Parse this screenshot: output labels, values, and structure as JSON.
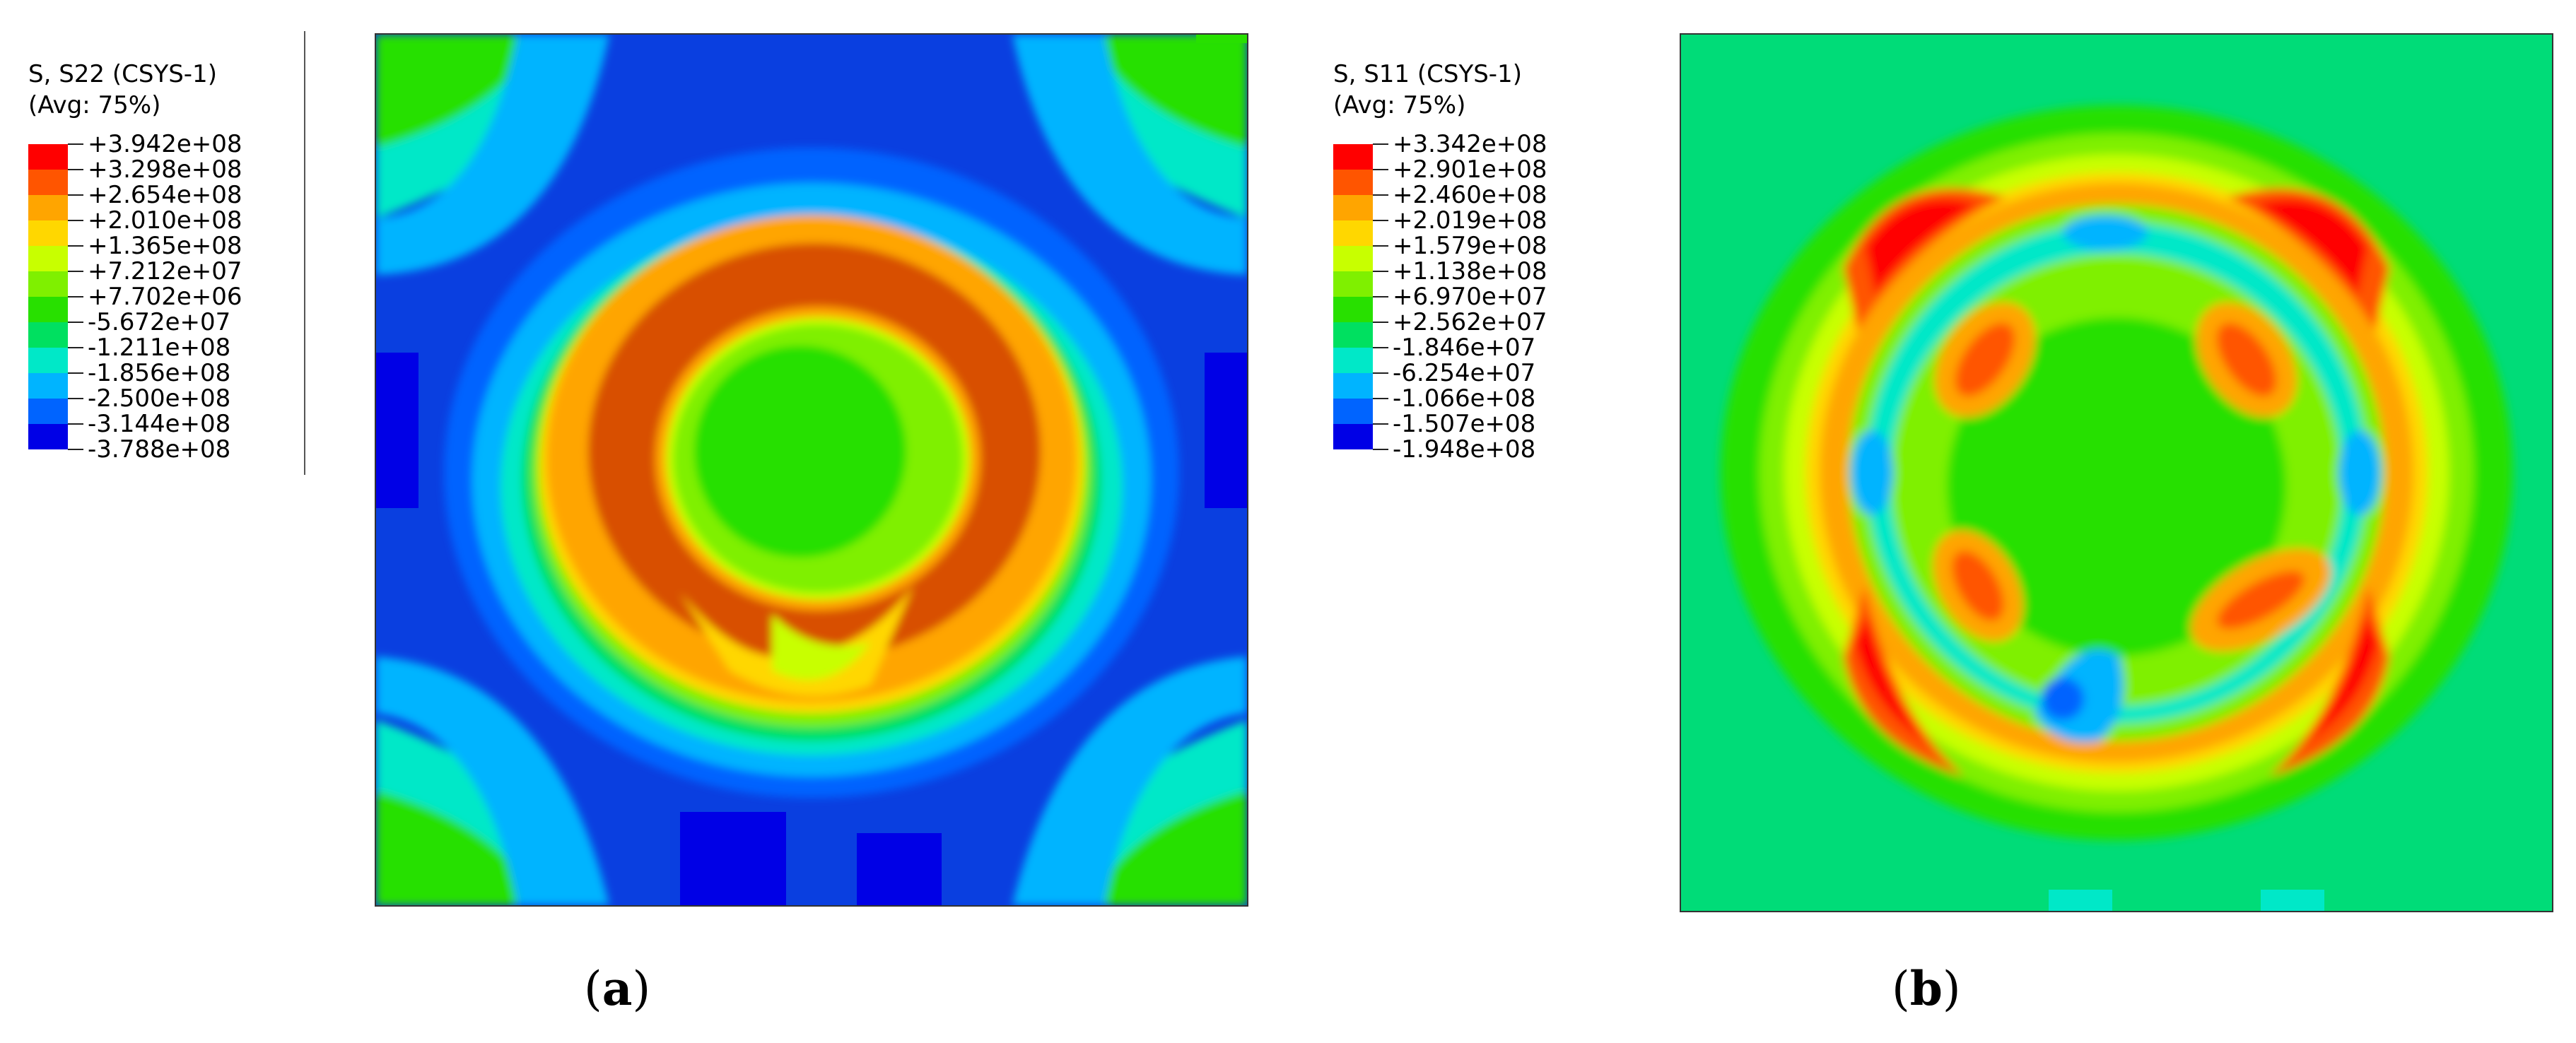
{
  "panels": [
    {
      "id": "a",
      "legend": {
        "title_line1": "S, S22 (CSYS-1)",
        "title_line2": "(Avg: 75%)",
        "values": [
          "+3.942e+08",
          "+3.298e+08",
          "+2.654e+08",
          "+2.010e+08",
          "+1.365e+08",
          "+7.212e+07",
          "+7.702e+06",
          "-5.672e+07",
          "-1.211e+08",
          "-1.856e+08",
          "-2.500e+08",
          "-3.144e+08",
          "-3.788e+08"
        ]
      },
      "caption_letter": "a"
    },
    {
      "id": "b",
      "legend": {
        "title_line1": "S, S11 (CSYS-1)",
        "title_line2": "(Avg: 75%)",
        "values": [
          "+3.342e+08",
          "+2.901e+08",
          "+2.460e+08",
          "+2.019e+08",
          "+1.579e+08",
          "+1.138e+08",
          "+6.970e+07",
          "+2.562e+07",
          "-1.846e+07",
          "-6.254e+07",
          "-1.066e+08",
          "-1.507e+08",
          "-1.948e+08"
        ]
      },
      "caption_letter": "b"
    }
  ],
  "colors": {
    "contour_scale": [
      "#ff0000",
      "#ff5500",
      "#ffa500",
      "#ffd700",
      "#c8ff00",
      "#7ff000",
      "#28e000",
      "#00e060",
      "#00e8c8",
      "#00b4ff",
      "#0064ff",
      "#0000e6"
    ],
    "a_background": "#0a3fe0",
    "b_background": "#00dc78"
  }
}
